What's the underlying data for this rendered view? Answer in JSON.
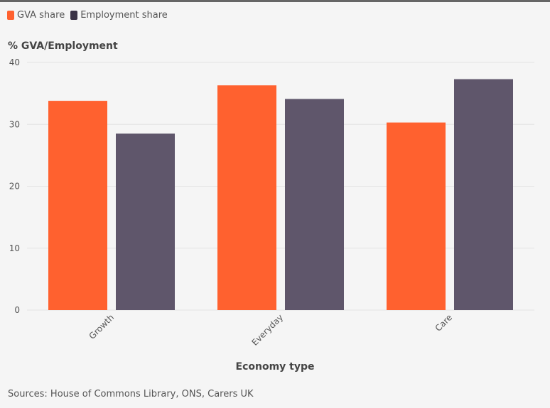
{
  "chart_data": {
    "type": "bar",
    "categories": [
      "Growth",
      "Everyday",
      "Care"
    ],
    "series": [
      {
        "name": "GVA share",
        "values": [
          33.8,
          36.3,
          30.3
        ],
        "color": "#ff612f"
      },
      {
        "name": "Employment share",
        "values": [
          28.5,
          34.1,
          37.3
        ],
        "color": "#5f566b"
      }
    ],
    "ylabel": "% GVA/Employment",
    "xlabel": "Economy type",
    "ylim": [
      0,
      40
    ],
    "yticks": [
      0,
      10,
      20,
      30,
      40
    ],
    "grid": true,
    "legend_position": "top-left"
  },
  "source": "Sources: House of Commons Library, ONS, Carers UK"
}
